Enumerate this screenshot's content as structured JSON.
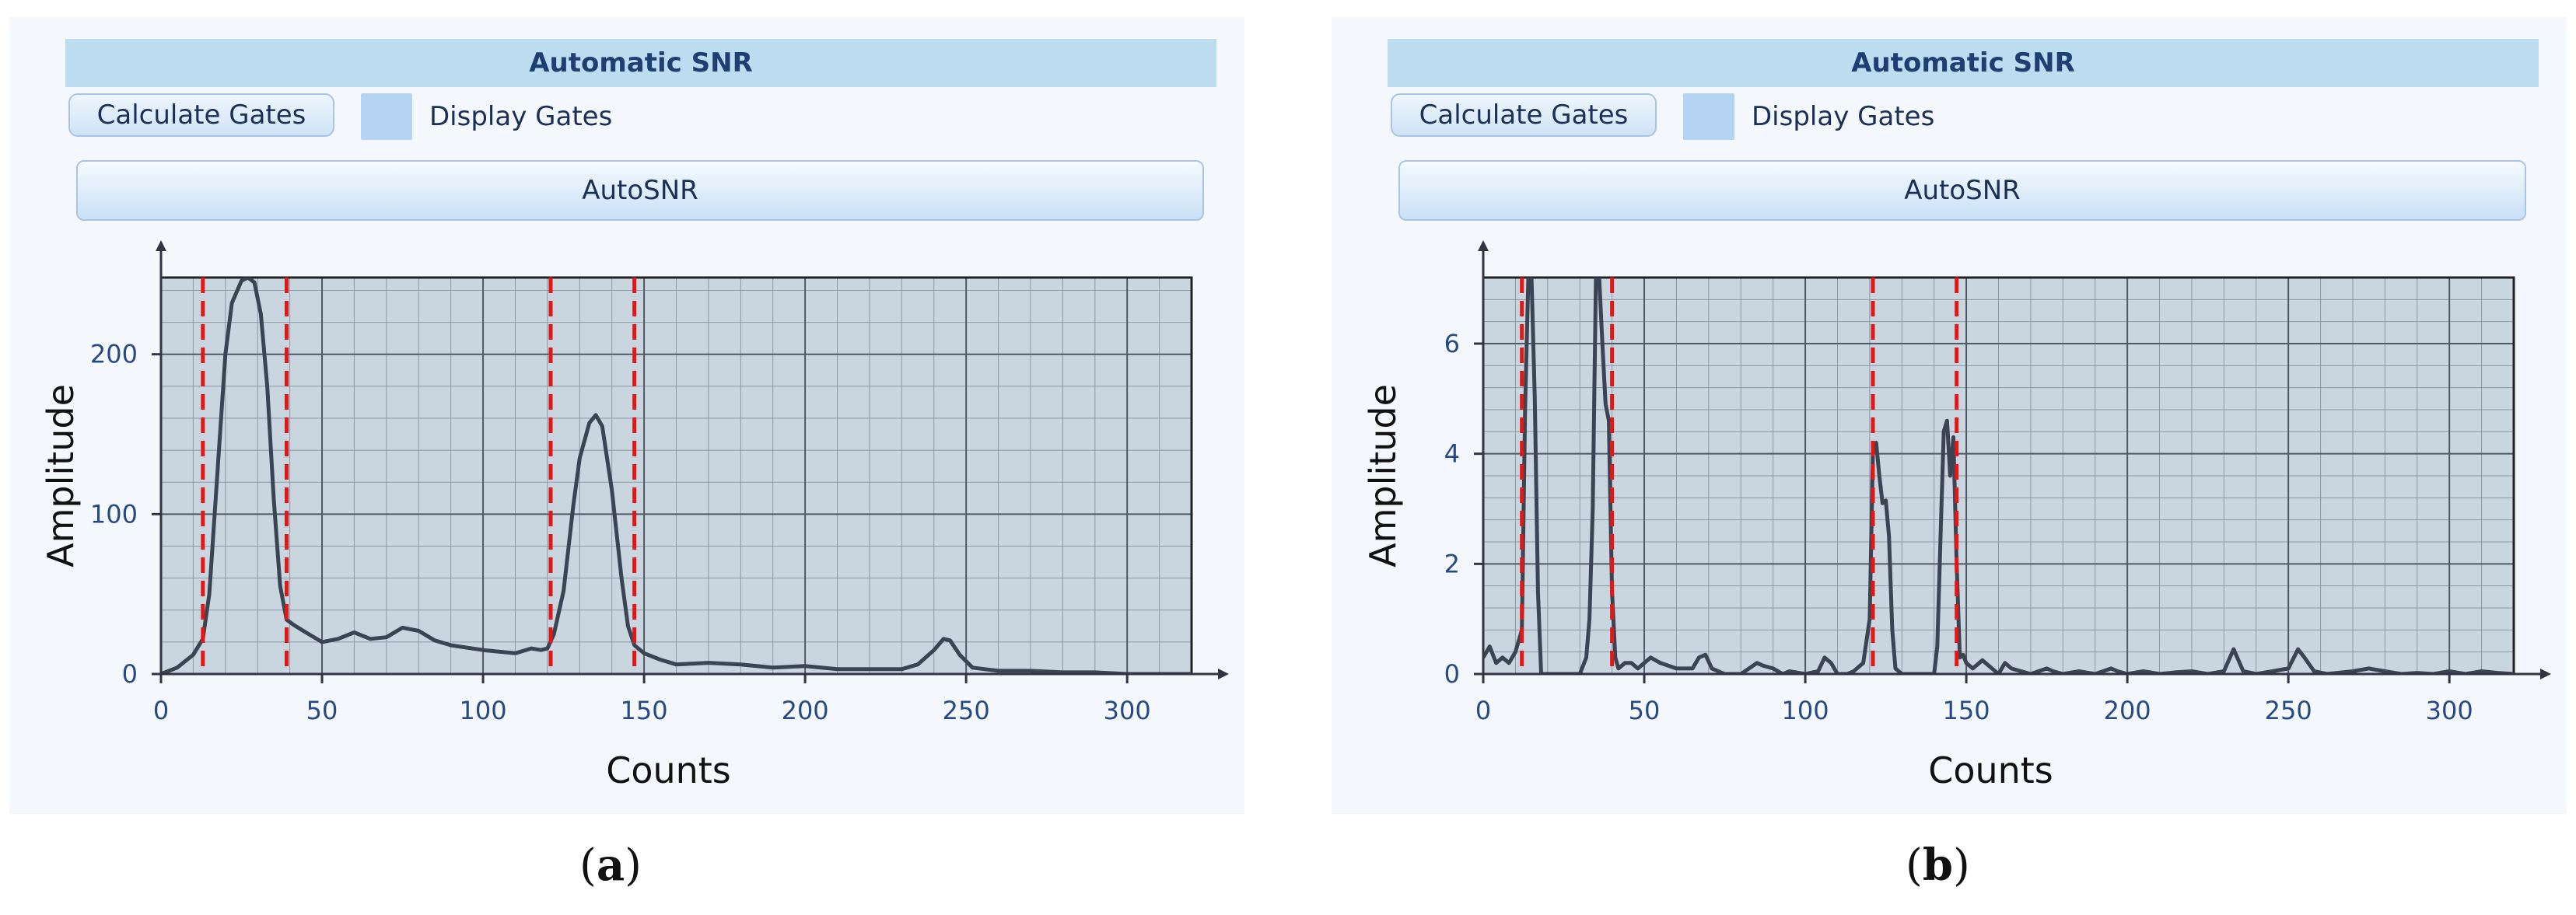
{
  "panels": [
    {
      "header": "Automatic SNR",
      "calculate_button": "Calculate Gates",
      "display_gates_label": "Display Gates",
      "autosnr_button": "AutoSNR",
      "caption_letter": "a"
    },
    {
      "header": "Automatic SNR",
      "calculate_button": "Calculate Gates",
      "display_gates_label": "Display Gates",
      "autosnr_button": "AutoSNR",
      "caption_letter": "b"
    }
  ],
  "colors": {
    "plot_bg": "#c9d5df",
    "curve": "#3b4452",
    "gate": "#e01818",
    "grid_major": "#4f5966",
    "grid_minor": "#8c98a4",
    "tick_text": "#274a85"
  },
  "chart_data": [
    {
      "type": "line",
      "xlabel": "Counts",
      "ylabel": "Amplitude",
      "xlim": [
        0,
        320
      ],
      "ylim": [
        0,
        248
      ],
      "xticks": [
        0,
        50,
        100,
        150,
        200,
        250,
        300
      ],
      "yticks": [
        0,
        100,
        200
      ],
      "gates": [
        13,
        39,
        121,
        147
      ],
      "series": [
        {
          "x": [
            0,
            5,
            10,
            13,
            15,
            18,
            20,
            22,
            25,
            27,
            29,
            31,
            33,
            35,
            37,
            39,
            41,
            45,
            50,
            55,
            60,
            65,
            70,
            75,
            80,
            85,
            90,
            100,
            110,
            115,
            118,
            120,
            122,
            125,
            128,
            130,
            133,
            135,
            137,
            140,
            143,
            145,
            147,
            150,
            155,
            160,
            170,
            180,
            190,
            200,
            210,
            220,
            230,
            235,
            240,
            243,
            245,
            248,
            252,
            260,
            270,
            280,
            290,
            300,
            320
          ],
          "y": [
            0,
            4,
            12,
            22,
            50,
            140,
            200,
            232,
            246,
            248,
            245,
            225,
            180,
            110,
            55,
            34,
            31,
            26,
            20,
            22,
            26,
            22,
            23,
            29,
            27,
            21,
            18,
            15,
            13,
            16,
            15,
            16,
            25,
            52,
            105,
            135,
            157,
            162,
            155,
            115,
            60,
            30,
            18,
            13,
            9,
            6,
            7,
            6,
            4,
            5,
            3,
            3,
            3,
            6,
            15,
            22,
            21,
            12,
            4,
            2,
            2,
            1,
            1,
            0,
            0
          ]
        }
      ]
    },
    {
      "type": "line",
      "xlabel": "Counts",
      "ylabel": "Amplitude",
      "xlim": [
        0,
        320
      ],
      "ylim": [
        0,
        7.2
      ],
      "xticks": [
        0,
        50,
        100,
        150,
        200,
        250,
        300
      ],
      "yticks": [
        0,
        2,
        4,
        6
      ],
      "gates": [
        12,
        40,
        121,
        147
      ],
      "series": [
        {
          "x": [
            0,
            2,
            4,
            6,
            8,
            10,
            12,
            13,
            14,
            15,
            16,
            17,
            18,
            19,
            20,
            30,
            32,
            33,
            34,
            35,
            36,
            37,
            38,
            39,
            40,
            41,
            42,
            44,
            46,
            48,
            50,
            52,
            55,
            60,
            65,
            67,
            69,
            71,
            75,
            80,
            85,
            87,
            90,
            93,
            95,
            100,
            104,
            106,
            108,
            110,
            113,
            115,
            118,
            120,
            121,
            122,
            123,
            124,
            125,
            126,
            127,
            128,
            130,
            135,
            140,
            141,
            142,
            143,
            144,
            145,
            146,
            147,
            148,
            149,
            150,
            152,
            155,
            160,
            162,
            164,
            170,
            175,
            177,
            180,
            185,
            190,
            195,
            197,
            200,
            205,
            210,
            215,
            220,
            225,
            230,
            233,
            236,
            240,
            245,
            250,
            253,
            255,
            258,
            262,
            270,
            275,
            280,
            285,
            290,
            295,
            300,
            305,
            310,
            315,
            320
          ],
          "y": [
            0.3,
            0.5,
            0.2,
            0.3,
            0.2,
            0.4,
            0.8,
            4.8,
            7.2,
            7.2,
            5,
            1.5,
            0,
            0,
            0,
            0,
            0.3,
            1,
            3,
            7.2,
            7.2,
            6,
            4.9,
            4.6,
            1.5,
            0.3,
            0.1,
            0.2,
            0.2,
            0.1,
            0.2,
            0.3,
            0.2,
            0.1,
            0.1,
            0.3,
            0.35,
            0.1,
            0,
            0,
            0.2,
            0.15,
            0.1,
            0,
            0.05,
            0,
            0.05,
            0.3,
            0.2,
            0,
            0,
            0.05,
            0.2,
            1,
            4,
            4.2,
            3.6,
            3.1,
            3.15,
            2.5,
            0.8,
            0.1,
            0,
            0,
            0,
            0.5,
            2.5,
            4.4,
            4.6,
            3.6,
            4.3,
            2,
            0.3,
            0.35,
            0.2,
            0.1,
            0.25,
            0,
            0.2,
            0.1,
            0,
            0.1,
            0.05,
            0,
            0.05,
            0,
            0.1,
            0.05,
            0,
            0.05,
            0,
            0.03,
            0.05,
            0,
            0.05,
            0.45,
            0.05,
            0,
            0.05,
            0.1,
            0.45,
            0.3,
            0.05,
            0,
            0.05,
            0.1,
            0.05,
            0,
            0.02,
            0,
            0.05,
            0,
            0.05,
            0.02,
            0
          ]
        }
      ]
    }
  ]
}
